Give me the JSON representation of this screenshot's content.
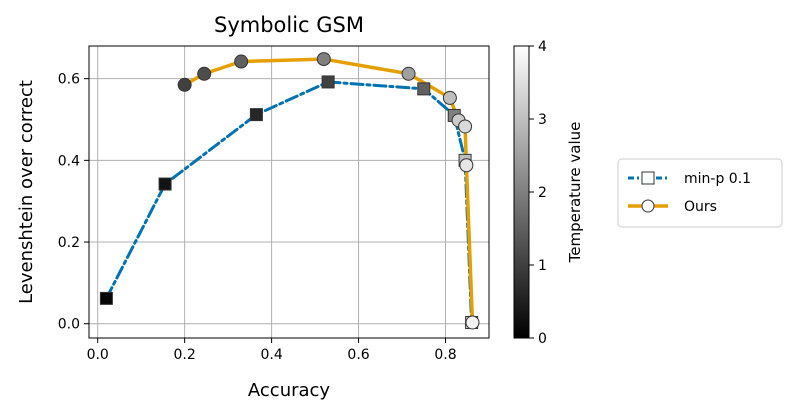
{
  "chart_data": {
    "type": "line",
    "title": "Symbolic GSM",
    "xlabel": "Accuracy",
    "ylabel": "Levenshtein over correct",
    "xlim": [
      -0.02,
      0.9
    ],
    "ylim": [
      -0.035,
      0.68
    ],
    "xticks": [
      "0.0",
      "0.2",
      "0.4",
      "0.6",
      "0.8"
    ],
    "yticks": [
      "0.0",
      "0.2",
      "0.4",
      "0.6"
    ],
    "grid": true,
    "legend_position": "right-outside",
    "series": [
      {
        "name": "min-p 0.1",
        "color": "#0072b2",
        "linestyle": "dashdot",
        "marker": "square",
        "points": [
          {
            "x": 0.02,
            "y": 0.062,
            "t": 0.1
          },
          {
            "x": 0.155,
            "y": 0.342,
            "t": 0.3
          },
          {
            "x": 0.365,
            "y": 0.512,
            "t": 0.6
          },
          {
            "x": 0.53,
            "y": 0.592,
            "t": 1.0
          },
          {
            "x": 0.75,
            "y": 0.575,
            "t": 1.5
          },
          {
            "x": 0.82,
            "y": 0.51,
            "t": 2.0
          },
          {
            "x": 0.845,
            "y": 0.4,
            "t": 3.0
          },
          {
            "x": 0.86,
            "y": 0.003,
            "t": 3.5
          }
        ]
      },
      {
        "name": "Ours",
        "color": "#e69f00",
        "linestyle": "solid",
        "marker": "circle",
        "points": [
          {
            "x": 0.2,
            "y": 0.585,
            "t": 1.0
          },
          {
            "x": 0.245,
            "y": 0.612,
            "t": 1.2
          },
          {
            "x": 0.33,
            "y": 0.642,
            "t": 1.5
          },
          {
            "x": 0.52,
            "y": 0.648,
            "t": 2.0
          },
          {
            "x": 0.715,
            "y": 0.612,
            "t": 2.5
          },
          {
            "x": 0.81,
            "y": 0.553,
            "t": 3.0
          },
          {
            "x": 0.83,
            "y": 0.498,
            "t": 3.2
          },
          {
            "x": 0.845,
            "y": 0.483,
            "t": 3.4
          },
          {
            "x": 0.848,
            "y": 0.388,
            "t": 3.6
          },
          {
            "x": 0.862,
            "y": 0.003,
            "t": 3.8
          }
        ]
      }
    ],
    "colorbar": {
      "label": "Temperature value",
      "range": [
        0,
        4
      ],
      "ticks": [
        "0",
        "1",
        "2",
        "3",
        "4"
      ],
      "colormap": "gray"
    }
  }
}
